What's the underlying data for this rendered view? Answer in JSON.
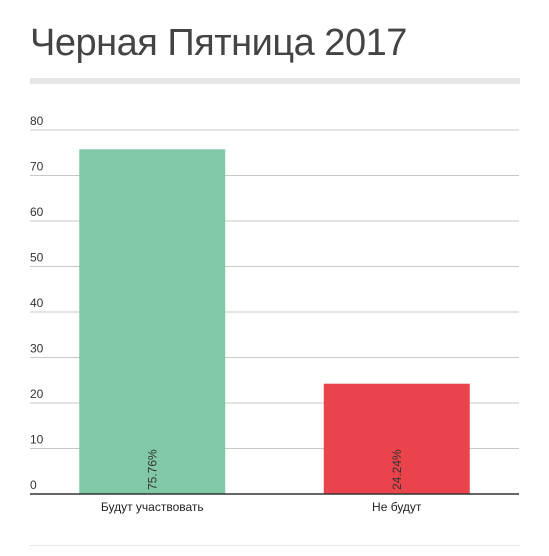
{
  "chart_data": {
    "type": "bar",
    "title": "Черная Пятница 2017",
    "categories": [
      "Будут участвовать",
      "Не будут"
    ],
    "values": [
      75.76,
      24.24
    ],
    "data_labels": [
      "75.76%",
      "24.24%"
    ],
    "colors": [
      "#81c9a6",
      "#eb434b"
    ],
    "ylim": [
      0,
      80
    ],
    "yticks": [
      0,
      10,
      20,
      30,
      40,
      50,
      60,
      70,
      80
    ],
    "grid": true,
    "xlabel": "",
    "ylabel": ""
  }
}
